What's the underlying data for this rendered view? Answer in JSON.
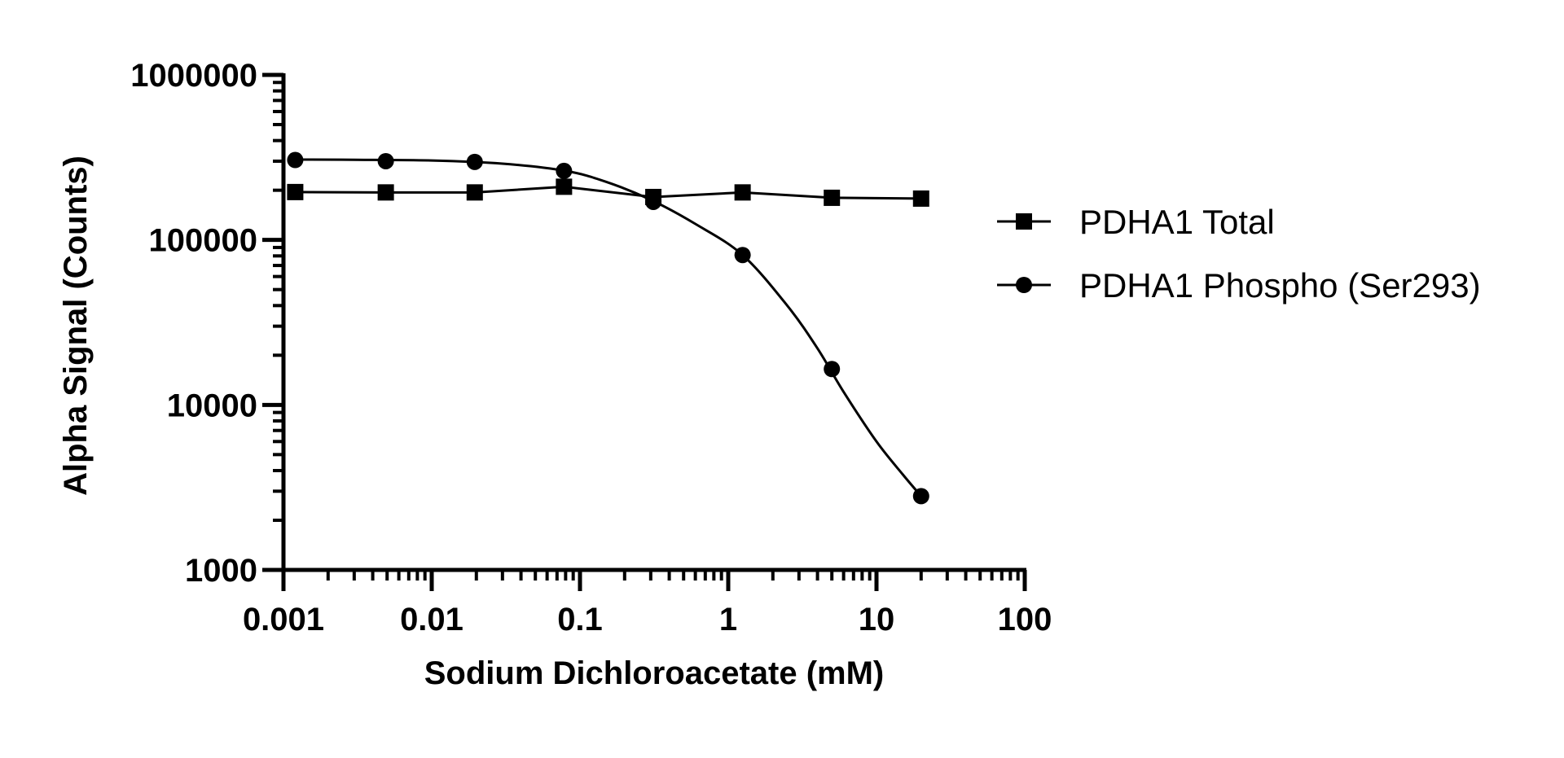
{
  "chart_data": {
    "type": "scatter",
    "xlabel": "Sodium Dichloroacetate (mM)",
    "ylabel": "Alpha Signal (Counts)",
    "x_scale": "log",
    "y_scale": "log",
    "xlim": [
      0.001,
      100
    ],
    "ylim": [
      1000,
      1000000
    ],
    "x_ticks": [
      0.001,
      0.01,
      0.1,
      1,
      10,
      100
    ],
    "x_tick_labels": [
      "0.001",
      "0.01",
      "0.1",
      "1",
      "10",
      "100"
    ],
    "y_ticks": [
      1000,
      10000,
      100000,
      1000000
    ],
    "y_tick_labels": [
      "1000",
      "10000",
      "100000",
      "1000000"
    ],
    "grid": false,
    "legend_position": "right",
    "series": [
      {
        "name": "PDHA1 Total",
        "marker": "square",
        "color": "#000000",
        "x": [
          0.0012,
          0.0049,
          0.0195,
          0.078,
          0.3125,
          1.25,
          5,
          20
        ],
        "y": [
          195000,
          194000,
          194000,
          210000,
          182000,
          194000,
          180000,
          178000
        ],
        "fit_x": [
          0.0012,
          0.0049,
          0.0195,
          0.078,
          0.3125,
          1.25,
          5,
          20
        ],
        "fit_y": [
          195000,
          194000,
          194000,
          210000,
          182000,
          194000,
          180000,
          178000
        ]
      },
      {
        "name": "PDHA1 Phospho (Ser293)",
        "marker": "circle",
        "color": "#000000",
        "x": [
          0.0012,
          0.0049,
          0.0195,
          0.078,
          0.3125,
          1.25,
          5,
          20
        ],
        "y": [
          305000,
          300000,
          297000,
          262000,
          170000,
          81000,
          16500,
          2800
        ],
        "fit_x": [
          0.0012,
          0.003,
          0.01,
          0.03,
          0.08,
          0.15,
          0.3,
          0.6,
          1.25,
          2.5,
          4,
          6,
          10,
          15,
          20
        ],
        "fit_y": [
          307000,
          306000,
          303000,
          290000,
          262000,
          225000,
          175000,
          125000,
          81000,
          40000,
          22000,
          12000,
          6000,
          3800,
          2800
        ]
      }
    ]
  }
}
